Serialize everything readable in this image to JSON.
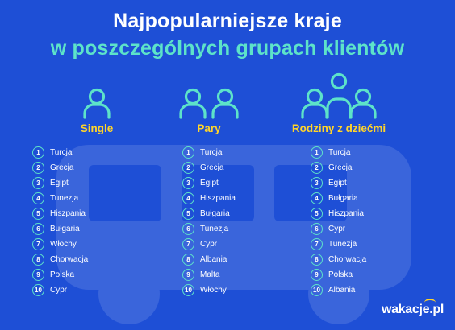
{
  "title_line1": "Najpopularniejsze kraje",
  "title_line2": "w poszczególnych grupach klientów",
  "groups": [
    {
      "name": "Single",
      "icon": "person-icon",
      "items": [
        {
          "n": "1",
          "country": "Turcja"
        },
        {
          "n": "2",
          "country": "Grecja"
        },
        {
          "n": "3",
          "country": "Egipt"
        },
        {
          "n": "4",
          "country": "Tunezja"
        },
        {
          "n": "5",
          "country": "Hiszpania"
        },
        {
          "n": "6",
          "country": "Bułgaria"
        },
        {
          "n": "7",
          "country": "Włochy"
        },
        {
          "n": "8",
          "country": "Chorwacja"
        },
        {
          "n": "9",
          "country": "Polska"
        },
        {
          "n": "10",
          "country": "Cypr"
        }
      ]
    },
    {
      "name": "Pary",
      "icon": "couple-icon",
      "items": [
        {
          "n": "1",
          "country": "Turcja"
        },
        {
          "n": "2",
          "country": "Grecja"
        },
        {
          "n": "3",
          "country": "Egipt"
        },
        {
          "n": "4",
          "country": "Hiszpania"
        },
        {
          "n": "5",
          "country": "Bułgaria"
        },
        {
          "n": "6",
          "country": "Tunezja"
        },
        {
          "n": "7",
          "country": "Cypr"
        },
        {
          "n": "8",
          "country": "Albania"
        },
        {
          "n": "9",
          "country": "Malta"
        },
        {
          "n": "10",
          "country": "Włochy"
        }
      ]
    },
    {
      "name": "Rodziny z dziećmi",
      "icon": "family-icon",
      "items": [
        {
          "n": "1",
          "country": "Turcja"
        },
        {
          "n": "2",
          "country": "Grecja"
        },
        {
          "n": "3",
          "country": "Egipt"
        },
        {
          "n": "4",
          "country": "Bułgaria"
        },
        {
          "n": "5",
          "country": "Hiszpania"
        },
        {
          "n": "6",
          "country": "Cypr"
        },
        {
          "n": "7",
          "country": "Tunezja"
        },
        {
          "n": "8",
          "country": "Chorwacja"
        },
        {
          "n": "9",
          "country": "Polska"
        },
        {
          "n": "10",
          "country": "Albania"
        }
      ]
    }
  ],
  "logo_text": "wakacje.pl",
  "colors": {
    "background": "#1e4fd6",
    "accent_teal": "#5de3c9",
    "accent_yellow": "#ffd42a",
    "text": "#ffffff"
  }
}
